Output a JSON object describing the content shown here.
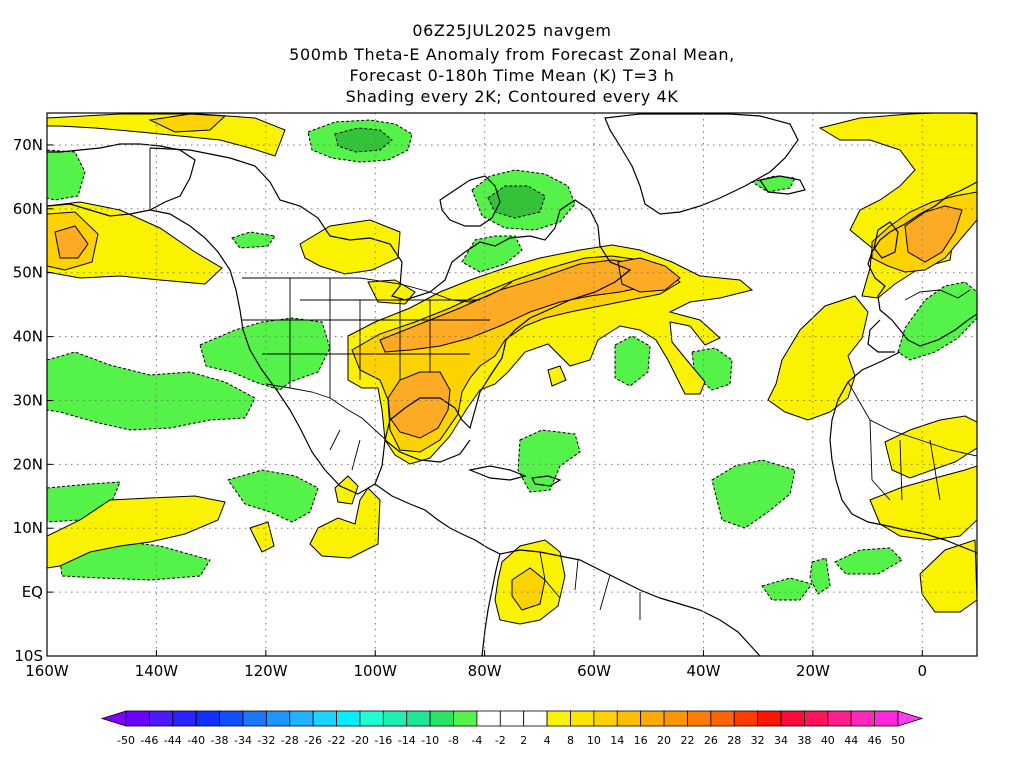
{
  "header": {
    "line1": "06Z25JUL2025 navgem",
    "line2": "500mb Theta-E Anomaly from Forecast Zonal Mean,",
    "line3": "Forecast 0-180h Time Mean (K) T=3 h",
    "line4": "Shading every 2K; Contoured every 4K"
  },
  "map": {
    "lon_range": [
      -160,
      10
    ],
    "lat_range": [
      -10,
      75
    ],
    "lat_ticks": [
      {
        "value": 70,
        "label": "70N"
      },
      {
        "value": 60,
        "label": "60N"
      },
      {
        "value": 50,
        "label": "50N"
      },
      {
        "value": 40,
        "label": "40N"
      },
      {
        "value": 30,
        "label": "30N"
      },
      {
        "value": 20,
        "label": "20N"
      },
      {
        "value": 10,
        "label": "10N"
      },
      {
        "value": 0,
        "label": "EQ"
      },
      {
        "value": -10,
        "label": "10S"
      }
    ],
    "lon_ticks": [
      {
        "value": -160,
        "label": "160W"
      },
      {
        "value": -140,
        "label": "140W"
      },
      {
        "value": -120,
        "label": "120W"
      },
      {
        "value": -100,
        "label": "100W"
      },
      {
        "value": -80,
        "label": "80W"
      },
      {
        "value": -60,
        "label": "60W"
      },
      {
        "value": -40,
        "label": "40W"
      },
      {
        "value": -20,
        "label": "20W"
      },
      {
        "value": 0,
        "label": "0"
      }
    ],
    "grid": "dotted",
    "colors": {
      "ocean_bg": "#ffffff",
      "coast": "#000000",
      "green": "#55f24a",
      "green_dark": "#33c239",
      "yellow": "#fbf200",
      "gold": "#fcd200",
      "orange": "#fdaa24"
    }
  },
  "colorbar": {
    "labels": [
      "-50",
      "-46",
      "-44",
      "-40",
      "-38",
      "-34",
      "-32",
      "-28",
      "-26",
      "-22",
      "-20",
      "-16",
      "-14",
      "-10",
      "-8",
      "-4",
      "-2",
      "2",
      "4",
      "8",
      "10",
      "14",
      "16",
      "20",
      "22",
      "26",
      "28",
      "32",
      "34",
      "38",
      "40",
      "44",
      "46",
      "50"
    ],
    "colors": [
      "#7f00ff",
      "#6c00ff",
      "#4b1aff",
      "#2a22ff",
      "#1030ff",
      "#1050ff",
      "#1a78ff",
      "#1e96ff",
      "#1eb4ff",
      "#1ed2ff",
      "#00f0ff",
      "#1effd2",
      "#1ef0b4",
      "#1ee696",
      "#28e664",
      "#55f24a",
      "#ffffff",
      "#ffffff",
      "#ffffff",
      "#fbf200",
      "#fce600",
      "#fcd200",
      "#fcbe00",
      "#fcaa00",
      "#fd9600",
      "#fd7d00",
      "#fe6400",
      "#fe3c00",
      "#ff1400",
      "#ff0a3c",
      "#ff145a",
      "#ff1e8c",
      "#ff28be",
      "#ff28dc",
      "#ff3cf0"
    ]
  }
}
